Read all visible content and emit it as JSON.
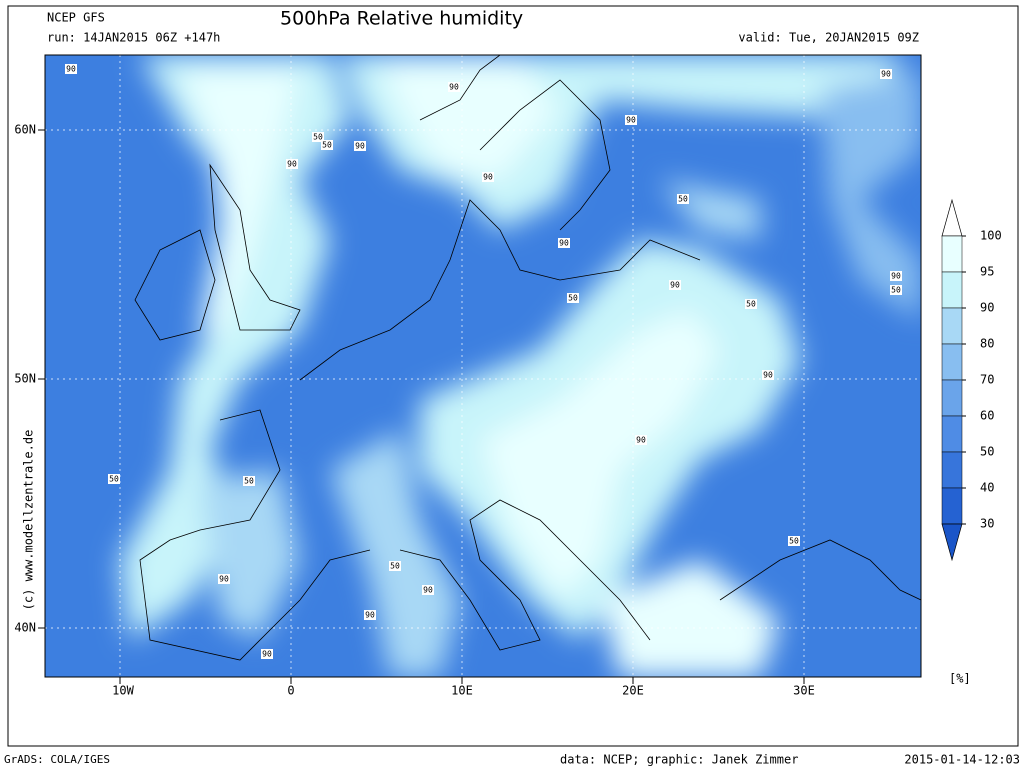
{
  "header": {
    "model": "NCEP GFS",
    "title": "500hPa Relative humidity",
    "run": "run: 14JAN2015 06Z +147h",
    "valid": "valid: Tue, 20JAN2015 09Z"
  },
  "map": {
    "lat_ticks": [
      "60N",
      "50N",
      "40N"
    ],
    "lon_ticks": [
      "10W",
      "0",
      "10E",
      "20E",
      "30E"
    ],
    "contour_labels": [
      "90",
      "90",
      "90",
      "50",
      "50",
      "90",
      "90",
      "90",
      "90",
      "50",
      "90",
      "90",
      "50",
      "50",
      "90",
      "50",
      "90",
      "90",
      "50",
      "50",
      "50",
      "50",
      "90",
      "90",
      "90",
      "90"
    ]
  },
  "colorbar": {
    "levels": [
      100,
      95,
      90,
      80,
      70,
      60,
      50,
      40,
      30
    ],
    "colors": [
      "#ffffff",
      "#e8ffff",
      "#c8f4fa",
      "#a8d8f5",
      "#88bef0",
      "#6aa4ea",
      "#4f8ce5",
      "#3775db",
      "#2562d2",
      "#1a55c8"
    ],
    "unit": "[%]"
  },
  "watermark": "(c) www.modellzentrale.de",
  "footer": {
    "left": "GrADS: COLA/IGES",
    "credit": "data: NCEP; graphic: Janek Zimmer",
    "timestamp": "2015-01-14-12:03"
  }
}
